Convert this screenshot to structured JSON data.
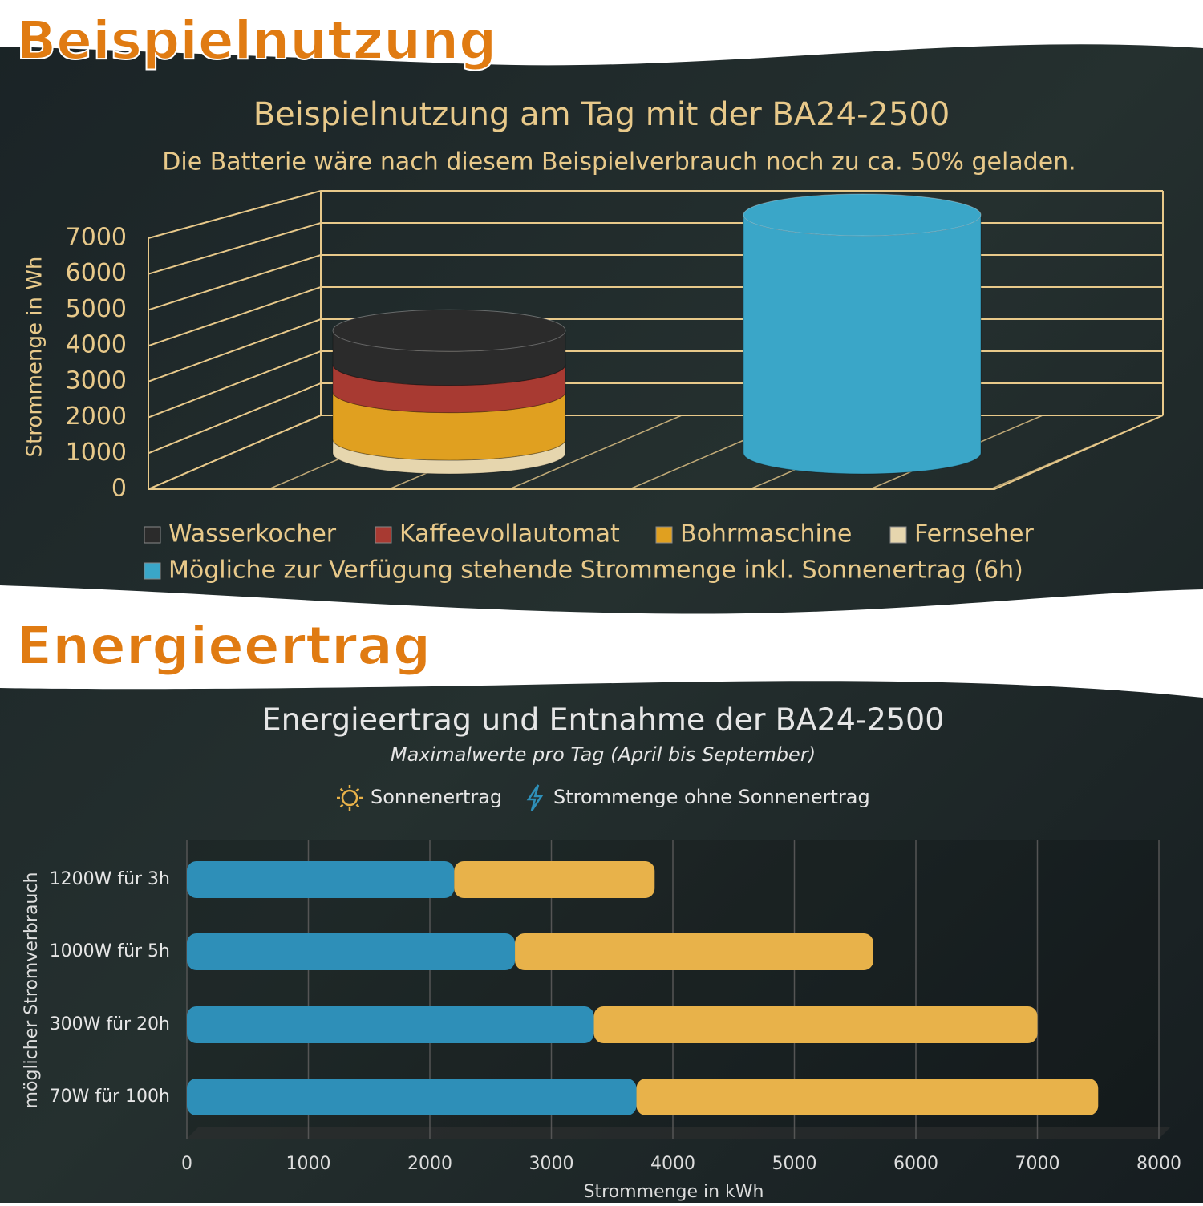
{
  "headings": [
    "Beispielnutzung",
    "Energieertrag"
  ],
  "chart_data": [
    {
      "type": "cylinder",
      "title": "Beispielnutzung am Tag mit der BA24-2500",
      "subtitle": "Die Batterie wäre nach diesem Beispielverbrauch noch zu ca. 50% geladen.",
      "ylabel": "Strommenge in Wh",
      "categories": [
        null,
        null
      ],
      "series": [
        {
          "name": "Wasserkocher",
          "color": "#2b2b2b",
          "values": [
            1000,
            null
          ]
        },
        {
          "name": "Kaffeevollautomat",
          "color": "#a83a32",
          "values": [
            800,
            null
          ]
        },
        {
          "name": "Bohrmaschine",
          "color": "#e0a020",
          "values": [
            1400,
            null
          ]
        },
        {
          "name": "Fernseher",
          "color": "#e6d6ae",
          "values": [
            400,
            null
          ]
        },
        {
          "name": "Mögliche zur Verfügung stehende Strommenge inkl. Sonnenertrag (6h)",
          "color": "#3aa6c8",
          "values": [
            null,
            7000
          ]
        }
      ],
      "ylim": [
        0,
        7000
      ],
      "yticks": [
        0,
        1000,
        2000,
        3000,
        4000,
        5000,
        6000,
        7000
      ],
      "grid": true
    },
    {
      "type": "barh",
      "title": "Energieertrag und Entnahme der BA24-2500",
      "subtitle": "Maximalwerte pro Tag (April bis September)",
      "xlabel": "Strommenge in kWh",
      "ylabel": "möglicher Stromverbrauch",
      "categories": [
        "1200W für 3h",
        "1000W für 5h",
        "300W für 20h",
        "70W für 100h"
      ],
      "series": [
        {
          "name": "Sonnenertrag",
          "color": "#e8b24a",
          "values": [
            1650,
            2950,
            3650,
            3800
          ]
        },
        {
          "name": "Strommenge ohne Sonnenertrag",
          "color": "#2e8fb8",
          "values": [
            2200,
            2700,
            3350,
            3700
          ]
        }
      ],
      "xlim": [
        0,
        8000
      ],
      "xticks": [
        0,
        1000,
        2000,
        3000,
        4000,
        5000,
        6000,
        7000,
        8000
      ],
      "grid": true
    }
  ]
}
